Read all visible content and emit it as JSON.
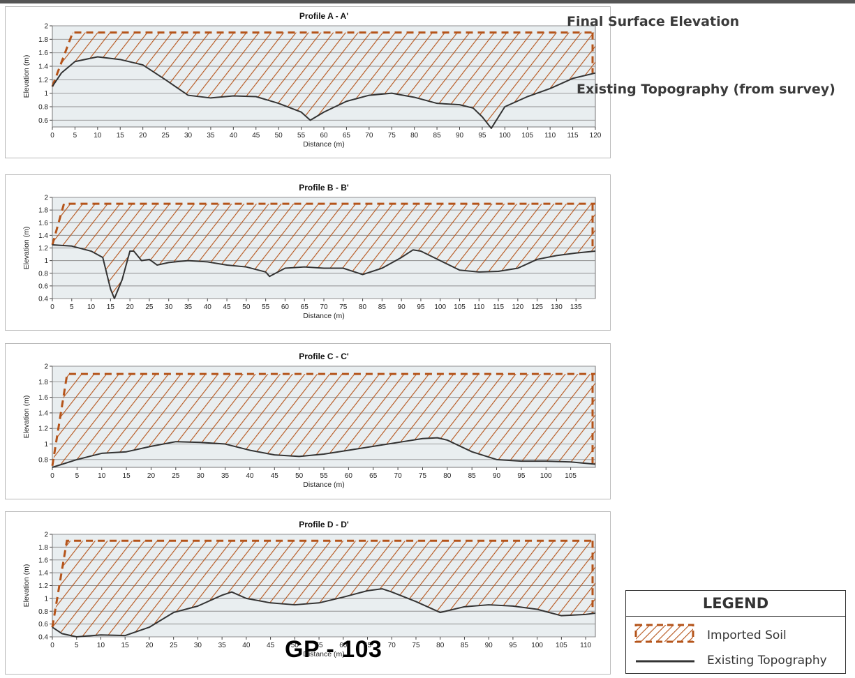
{
  "annotations": {
    "final_surface": "Final Surface Elevation",
    "existing_topo": "Existing Topography (from survey)"
  },
  "legend": {
    "title": "LEGEND",
    "imported_soil": "Imported Soil",
    "existing_topography": "Existing Topography"
  },
  "page_code": "GP - 103",
  "colors": {
    "hatch": "#b5541a",
    "terrain_line": "#333333",
    "grid": "#8f8f8f",
    "plot_background": "#e9eef0"
  },
  "chart_data": [
    {
      "type": "area",
      "title": "Profile A - A'",
      "xlabel": "Distance (m)",
      "ylabel": "Elevation (m)",
      "xlim": [
        0,
        120
      ],
      "ylim": [
        0.5,
        2
      ],
      "xticks": [
        0,
        5,
        10,
        15,
        20,
        25,
        30,
        35,
        40,
        45,
        50,
        55,
        60,
        65,
        70,
        75,
        80,
        85,
        90,
        95,
        100,
        105,
        110,
        115,
        120
      ],
      "yticks": [
        0.6,
        0.8,
        1,
        1.2,
        1.4,
        1.6,
        1.8,
        2
      ],
      "grid": true,
      "final_surface": {
        "x": [
          0,
          4.5,
          120
        ],
        "y": [
          1.1,
          1.9,
          1.9
        ]
      },
      "series": [
        {
          "name": "Existing Topography",
          "x": [
            0,
            2,
            5,
            10,
            15,
            20,
            25,
            30,
            35,
            40,
            45,
            50,
            55,
            57,
            60,
            65,
            70,
            75,
            80,
            85,
            90,
            93,
            95,
            97,
            100,
            105,
            110,
            115,
            120
          ],
          "y": [
            1.1,
            1.3,
            1.47,
            1.54,
            1.5,
            1.42,
            1.2,
            0.97,
            0.93,
            0.96,
            0.95,
            0.85,
            0.72,
            0.6,
            0.72,
            0.88,
            0.97,
            1.0,
            0.94,
            0.85,
            0.83,
            0.78,
            0.65,
            0.48,
            0.8,
            0.95,
            1.07,
            1.22,
            1.3
          ]
        }
      ]
    },
    {
      "type": "area",
      "title": "Profile B - B'",
      "xlabel": "Distance (m)",
      "ylabel": "Elevation (m)",
      "xlim": [
        0,
        140
      ],
      "ylim": [
        0.4,
        2
      ],
      "xticks": [
        0,
        5,
        10,
        15,
        20,
        25,
        30,
        35,
        40,
        45,
        50,
        55,
        60,
        65,
        70,
        75,
        80,
        85,
        90,
        95,
        100,
        105,
        110,
        115,
        120,
        125,
        130,
        135
      ],
      "yticks": [
        0.4,
        0.6,
        0.8,
        1,
        1.2,
        1.4,
        1.6,
        1.8,
        2
      ],
      "grid": true,
      "final_surface": {
        "x": [
          0,
          3,
          140
        ],
        "y": [
          1.25,
          1.9,
          1.9
        ]
      },
      "series": [
        {
          "name": "Existing Topography",
          "x": [
            0,
            5,
            10,
            13,
            15,
            16,
            18,
            20,
            21,
            23,
            25,
            27,
            30,
            35,
            40,
            45,
            50,
            55,
            56,
            60,
            65,
            70,
            75,
            80,
            85,
            90,
            93,
            95,
            100,
            105,
            110,
            115,
            120,
            125,
            130,
            135,
            140
          ],
          "y": [
            1.25,
            1.23,
            1.15,
            1.05,
            0.55,
            0.4,
            0.7,
            1.15,
            1.15,
            1.0,
            1.02,
            0.93,
            0.97,
            1.0,
            0.98,
            0.93,
            0.9,
            0.82,
            0.75,
            0.88,
            0.9,
            0.88,
            0.88,
            0.78,
            0.88,
            1.05,
            1.17,
            1.15,
            1.0,
            0.85,
            0.82,
            0.83,
            0.88,
            1.02,
            1.08,
            1.12,
            1.15
          ]
        }
      ]
    },
    {
      "type": "area",
      "title": "Profile C - C'",
      "xlabel": "Distance (m)",
      "ylabel": "Elevation (m)",
      "xlim": [
        0,
        110
      ],
      "ylim": [
        0.7,
        2
      ],
      "xticks": [
        0,
        5,
        10,
        15,
        20,
        25,
        30,
        35,
        40,
        45,
        50,
        55,
        60,
        65,
        70,
        75,
        80,
        85,
        90,
        95,
        100,
        105
      ],
      "yticks": [
        0.8,
        1,
        1.2,
        1.4,
        1.6,
        1.8,
        2
      ],
      "grid": true,
      "final_surface": {
        "x": [
          0,
          3,
          110
        ],
        "y": [
          0.72,
          1.9,
          1.9
        ]
      },
      "series": [
        {
          "name": "Existing Topography",
          "x": [
            0,
            5,
            10,
            15,
            20,
            25,
            30,
            35,
            40,
            45,
            50,
            55,
            60,
            65,
            70,
            75,
            78,
            80,
            85,
            90,
            95,
            100,
            105,
            110
          ],
          "y": [
            0.7,
            0.8,
            0.88,
            0.9,
            0.97,
            1.03,
            1.02,
            1.0,
            0.92,
            0.86,
            0.84,
            0.87,
            0.92,
            0.97,
            1.02,
            1.07,
            1.08,
            1.05,
            0.9,
            0.8,
            0.78,
            0.78,
            0.77,
            0.74
          ]
        }
      ]
    },
    {
      "type": "area",
      "title": "Profile D - D'",
      "xlabel": "Distance (m)",
      "ylabel": "Elevation (m)",
      "xlim": [
        0,
        112
      ],
      "ylim": [
        0.4,
        2
      ],
      "xticks": [
        0,
        5,
        10,
        15,
        20,
        25,
        30,
        35,
        40,
        45,
        50,
        55,
        60,
        65,
        70,
        75,
        80,
        85,
        90,
        95,
        100,
        105,
        110
      ],
      "yticks": [
        0.4,
        0.6,
        0.8,
        1,
        1.2,
        1.4,
        1.6,
        1.8,
        2
      ],
      "grid": true,
      "final_surface": {
        "x": [
          0,
          3,
          112
        ],
        "y": [
          0.55,
          1.9,
          1.9
        ]
      },
      "series": [
        {
          "name": "Existing Topography",
          "x": [
            0,
            2,
            5,
            10,
            15,
            20,
            25,
            30,
            35,
            37,
            40,
            45,
            50,
            55,
            60,
            65,
            68,
            70,
            75,
            80,
            85,
            90,
            95,
            100,
            105,
            110,
            112
          ],
          "y": [
            0.55,
            0.45,
            0.4,
            0.43,
            0.42,
            0.55,
            0.78,
            0.88,
            1.05,
            1.1,
            1.0,
            0.93,
            0.9,
            0.93,
            1.02,
            1.12,
            1.15,
            1.1,
            0.95,
            0.78,
            0.87,
            0.9,
            0.88,
            0.83,
            0.73,
            0.75,
            0.77
          ]
        }
      ]
    }
  ]
}
